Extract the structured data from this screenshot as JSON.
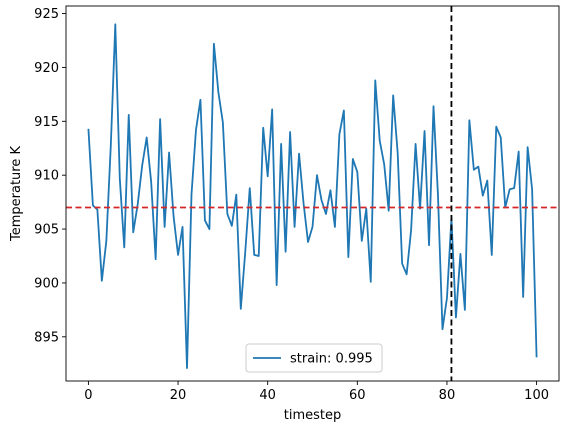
{
  "chart_data": {
    "type": "line",
    "xlabel": "timestep",
    "ylabel": "Temperature K",
    "xlim": [
      -5,
      105
    ],
    "ylim": [
      890.9,
      925.7
    ],
    "xticks": [
      0,
      20,
      40,
      60,
      80,
      100
    ],
    "yticks": [
      895,
      900,
      905,
      910,
      915,
      920,
      925
    ],
    "grid": false,
    "legend_position": "bottom-center",
    "series": [
      {
        "name": "strain: 0.995",
        "color": "#1f77b4",
        "x": [
          0,
          1,
          2,
          3,
          4,
          5,
          6,
          7,
          8,
          9,
          10,
          11,
          12,
          13,
          14,
          15,
          16,
          17,
          18,
          19,
          20,
          21,
          22,
          23,
          24,
          25,
          26,
          27,
          28,
          29,
          30,
          31,
          32,
          33,
          34,
          35,
          36,
          37,
          38,
          39,
          40,
          41,
          42,
          43,
          44,
          45,
          46,
          47,
          48,
          49,
          50,
          51,
          52,
          53,
          54,
          55,
          56,
          57,
          58,
          59,
          60,
          61,
          62,
          63,
          64,
          65,
          66,
          67,
          68,
          69,
          70,
          71,
          72,
          73,
          74,
          75,
          76,
          77,
          78,
          79,
          80,
          81,
          82,
          83,
          84,
          85,
          86,
          87,
          88,
          89,
          90,
          91,
          92,
          93,
          94,
          95,
          96,
          97,
          98,
          99,
          100
        ],
        "values": [
          914.3,
          907.2,
          906.8,
          900.2,
          903.9,
          912.8,
          924.0,
          909.7,
          903.3,
          915.6,
          904.7,
          907.3,
          910.9,
          913.5,
          909.4,
          902.2,
          915.2,
          905.2,
          912.1,
          906.2,
          902.6,
          905.2,
          892.1,
          908.2,
          914.2,
          917.0,
          905.8,
          905.0,
          922.2,
          917.7,
          914.9,
          906.4,
          905.3,
          908.2,
          897.6,
          902.9,
          908.8,
          902.6,
          902.5,
          914.4,
          909.9,
          916.1,
          899.8,
          912.9,
          902.9,
          914.0,
          905.2,
          912.0,
          907.4,
          903.8,
          905.2,
          910.0,
          907.7,
          906.4,
          908.6,
          905.2,
          913.8,
          916.0,
          902.4,
          911.5,
          910.3,
          903.9,
          906.9,
          900.1,
          918.8,
          913.2,
          911.0,
          906.7,
          917.4,
          912.1,
          901.8,
          900.8,
          904.9,
          912.9,
          906.9,
          914.1,
          903.5,
          916.4,
          908.1,
          895.7,
          898.6,
          906.0,
          896.8,
          902.7,
          897.5,
          915.1,
          910.5,
          910.8,
          908.1,
          909.5,
          902.6,
          914.5,
          913.5,
          907.0,
          908.7,
          908.8,
          912.2,
          898.7,
          912.6,
          908.7,
          893.1
        ]
      }
    ],
    "reference_lines": [
      {
        "orientation": "horizontal",
        "value": 907.0,
        "color": "#d62728",
        "style": "dashed"
      },
      {
        "orientation": "vertical",
        "value": 81,
        "color": "#000000",
        "style": "dashed"
      }
    ]
  }
}
